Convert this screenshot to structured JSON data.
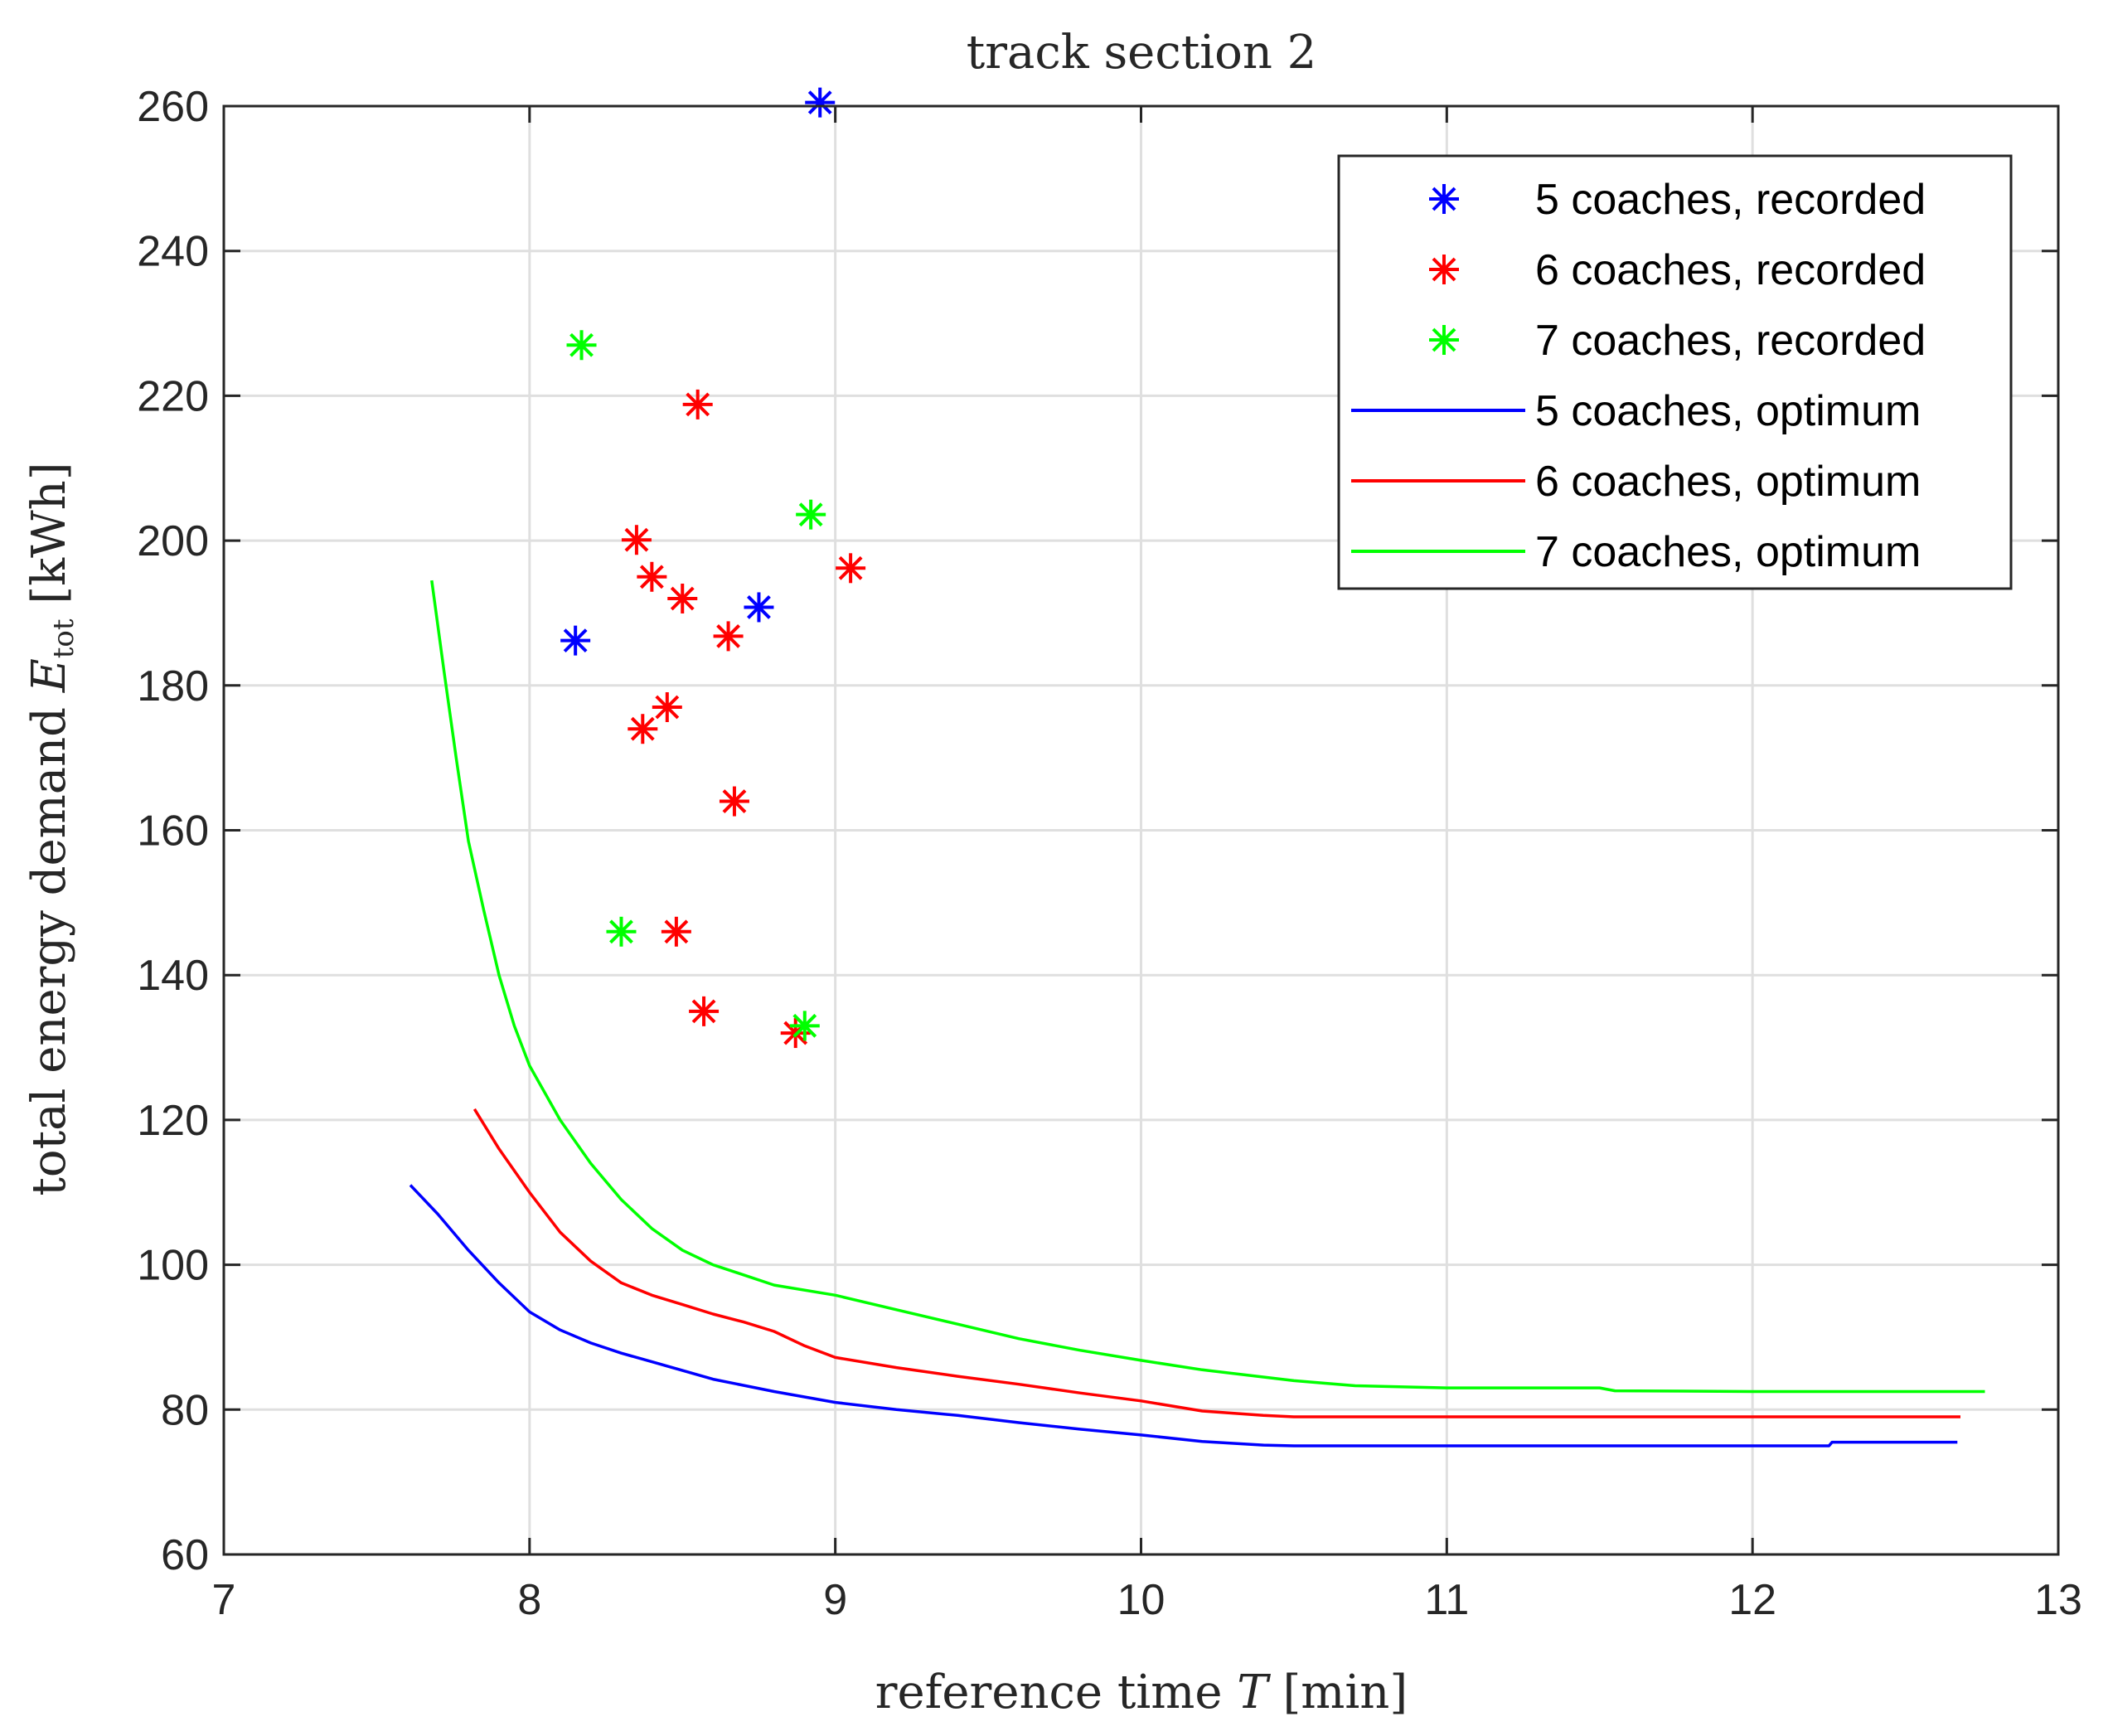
{
  "chart_data": {
    "type": "line",
    "title": "track section 2",
    "xlabel": "reference time T [min]",
    "ylabel": "total energy demand E_tot [kWh]",
    "xlabel_main": "reference time ",
    "xlabel_var": "T",
    "xlabel_unit": " [min]",
    "ylabel_main": "total energy demand ",
    "ylabel_var": "E",
    "ylabel_sub": "tot",
    "ylabel_unit": " [kWh]",
    "xlim": [
      7,
      13
    ],
    "ylim": [
      60,
      260
    ],
    "xticks": [
      "7",
      "8",
      "9",
      "10",
      "11",
      "12",
      "13"
    ],
    "yticks": [
      "60",
      "80",
      "100",
      "120",
      "140",
      "160",
      "180",
      "200",
      "220",
      "240",
      "260"
    ],
    "grid": true,
    "legend_position": "top-right",
    "series": [
      {
        "name": "5 coaches, recorded",
        "kind": "scatter",
        "marker": "*",
        "color": "#0000ff",
        "points": [
          [
            8.95,
            260.5
          ],
          [
            8.15,
            186.2
          ],
          [
            8.75,
            190.8
          ]
        ]
      },
      {
        "name": "6 coaches, recorded",
        "kind": "scatter",
        "marker": "*",
        "color": "#ff0000",
        "points": [
          [
            8.55,
            218.8
          ],
          [
            8.35,
            200.1
          ],
          [
            9.05,
            196.2
          ],
          [
            8.4,
            195
          ],
          [
            8.5,
            192
          ],
          [
            8.65,
            186.8
          ],
          [
            8.45,
            177
          ],
          [
            8.37,
            174
          ],
          [
            8.67,
            164
          ],
          [
            8.48,
            146
          ],
          [
            8.57,
            135
          ],
          [
            8.87,
            132
          ]
        ]
      },
      {
        "name": "7 coaches, recorded",
        "kind": "scatter",
        "marker": "*",
        "color": "#00ff00",
        "points": [
          [
            8.17,
            227
          ],
          [
            8.92,
            203.6
          ],
          [
            8.3,
            146
          ],
          [
            8.9,
            133
          ]
        ]
      },
      {
        "name": "5 coaches, optimum",
        "kind": "line",
        "color": "#0000ff",
        "points": [
          [
            7.61,
            111
          ],
          [
            7.7,
            107
          ],
          [
            7.8,
            102
          ],
          [
            7.9,
            97.5
          ],
          [
            8.0,
            93.5
          ],
          [
            8.1,
            91
          ],
          [
            8.2,
            89.2
          ],
          [
            8.3,
            87.8
          ],
          [
            8.4,
            86.6
          ],
          [
            8.5,
            85.4
          ],
          [
            8.6,
            84.2
          ],
          [
            8.8,
            82.5
          ],
          [
            9.0,
            81.0
          ],
          [
            9.2,
            80.0
          ],
          [
            9.4,
            79.2
          ],
          [
            9.6,
            78.2
          ],
          [
            9.8,
            77.3
          ],
          [
            10.0,
            76.5
          ],
          [
            10.2,
            75.6
          ],
          [
            10.4,
            75.1
          ],
          [
            10.5,
            75.0
          ],
          [
            11.0,
            75.0
          ],
          [
            11.5,
            75.0
          ],
          [
            12.0,
            75.0
          ],
          [
            12.25,
            75.0
          ],
          [
            12.26,
            75.5
          ],
          [
            12.67,
            75.5
          ]
        ]
      },
      {
        "name": "6 coaches, optimum",
        "kind": "line",
        "color": "#ff0000",
        "points": [
          [
            7.82,
            121.5
          ],
          [
            7.9,
            116
          ],
          [
            8.0,
            110
          ],
          [
            8.1,
            104.5
          ],
          [
            8.2,
            100.5
          ],
          [
            8.3,
            97.5
          ],
          [
            8.4,
            95.8
          ],
          [
            8.5,
            94.5
          ],
          [
            8.6,
            93.2
          ],
          [
            8.7,
            92.1
          ],
          [
            8.8,
            90.8
          ],
          [
            8.9,
            88.8
          ],
          [
            9.0,
            87.2
          ],
          [
            9.2,
            85.8
          ],
          [
            9.4,
            84.6
          ],
          [
            9.6,
            83.5
          ],
          [
            9.8,
            82.3
          ],
          [
            10.0,
            81.2
          ],
          [
            10.2,
            79.8
          ],
          [
            10.4,
            79.2
          ],
          [
            10.5,
            79.0
          ],
          [
            11.0,
            79.0
          ],
          [
            11.5,
            79.0
          ],
          [
            12.0,
            79.0
          ],
          [
            12.68,
            79.0
          ]
        ]
      },
      {
        "name": "7 coaches, optimum",
        "kind": "line",
        "color": "#00ff00",
        "points": [
          [
            7.68,
            194.5
          ],
          [
            7.72,
            182
          ],
          [
            7.76,
            170
          ],
          [
            7.8,
            158.5
          ],
          [
            7.85,
            149
          ],
          [
            7.9,
            140
          ],
          [
            7.95,
            133
          ],
          [
            8.0,
            127.5
          ],
          [
            8.1,
            120
          ],
          [
            8.2,
            114
          ],
          [
            8.3,
            109
          ],
          [
            8.4,
            105
          ],
          [
            8.5,
            102
          ],
          [
            8.6,
            100
          ],
          [
            8.7,
            98.6
          ],
          [
            8.8,
            97.2
          ],
          [
            9.0,
            95.8
          ],
          [
            9.2,
            93.8
          ],
          [
            9.4,
            91.8
          ],
          [
            9.6,
            89.8
          ],
          [
            9.8,
            88.2
          ],
          [
            10.0,
            86.8
          ],
          [
            10.2,
            85.5
          ],
          [
            10.4,
            84.5
          ],
          [
            10.5,
            84.0
          ],
          [
            10.7,
            83.3
          ],
          [
            11.0,
            83.0
          ],
          [
            11.5,
            83.0
          ],
          [
            11.55,
            82.6
          ],
          [
            12.0,
            82.5
          ],
          [
            12.76,
            82.5
          ]
        ]
      }
    ]
  }
}
